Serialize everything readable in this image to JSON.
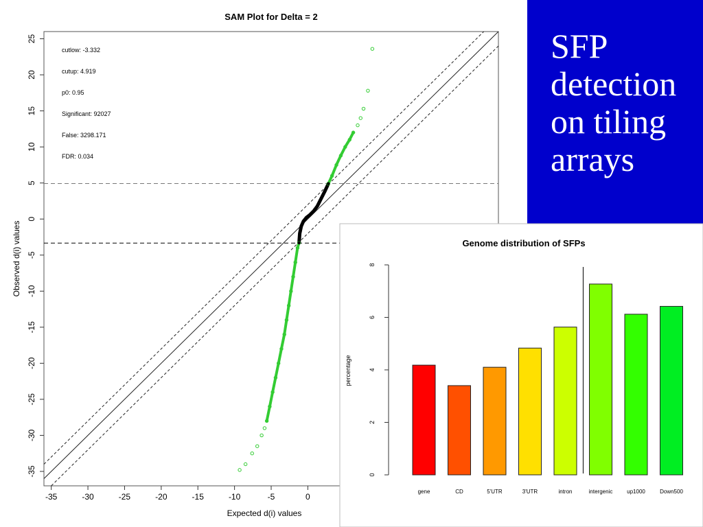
{
  "slide": {
    "title": "SFP detection on tiling arrays"
  },
  "colors": {
    "slide_blue": "#0000cc",
    "sig_green": "#33cc33",
    "null_black": "#000000"
  },
  "chart_data": [
    {
      "type": "scatter",
      "title": "SAM Plot for Delta = 2",
      "xlabel": "Expected d(i) values",
      "ylabel": "Observed d(i) values",
      "xlim": [
        -36,
        26
      ],
      "ylim": [
        -37,
        26
      ],
      "xticks": [
        -35,
        -30,
        -25,
        -20,
        -15,
        -10,
        -5,
        0
      ],
      "yticks": [
        -35,
        -30,
        -25,
        -20,
        -15,
        -10,
        -5,
        0,
        5,
        10,
        15,
        20,
        25
      ],
      "delta": 2,
      "stats": [
        {
          "label": "cutlow:",
          "value": "-3.332"
        },
        {
          "label": "cutup:",
          "value": "4.919"
        },
        {
          "label": "p0:",
          "value": "0.95"
        },
        {
          "label": "Significant:",
          "value": "92027"
        },
        {
          "label": "False:",
          "value": "3298.171"
        },
        {
          "label": "FDR:",
          "value": "0.034"
        }
      ],
      "cut_lines": {
        "upper": 4.919,
        "lower": -3.332
      },
      "significant_low": [
        [
          -9.3,
          -34.8
        ],
        [
          -8.5,
          -34.0
        ],
        [
          -7.6,
          -32.5
        ],
        [
          -6.9,
          -31.5
        ],
        [
          -6.3,
          -30.0
        ],
        [
          -5.9,
          -29.0
        ],
        [
          -5.6,
          -28.0
        ],
        [
          -5.2,
          -26.0
        ],
        [
          -4.8,
          -24.0
        ],
        [
          -4.4,
          -22.0
        ],
        [
          -4.0,
          -20.0
        ],
        [
          -3.6,
          -18.0
        ],
        [
          -3.2,
          -16.0
        ],
        [
          -2.9,
          -14.0
        ],
        [
          -2.6,
          -12.0
        ],
        [
          -2.3,
          -10.0
        ],
        [
          -2.0,
          -8.0
        ],
        [
          -1.7,
          -6.0
        ],
        [
          -1.4,
          -4.0
        ],
        [
          -1.2,
          -3.3
        ]
      ],
      "null_points": [
        [
          -1.2,
          -3.3
        ],
        [
          -1.1,
          -2.0
        ],
        [
          -0.9,
          -1.0
        ],
        [
          -0.6,
          -0.3
        ],
        [
          -0.2,
          0.2
        ],
        [
          0.3,
          0.6
        ],
        [
          0.8,
          1.1
        ],
        [
          1.3,
          1.8
        ],
        [
          1.8,
          2.8
        ],
        [
          2.3,
          3.8
        ],
        [
          2.8,
          4.9
        ]
      ],
      "significant_high": [
        [
          2.8,
          4.9
        ],
        [
          3.3,
          6.0
        ],
        [
          3.9,
          7.5
        ],
        [
          4.5,
          8.8
        ],
        [
          5.1,
          10.0
        ],
        [
          5.7,
          11.0
        ],
        [
          6.2,
          12.0
        ],
        [
          6.8,
          13.0
        ],
        [
          7.2,
          14.0
        ],
        [
          7.6,
          15.3
        ],
        [
          8.2,
          17.8
        ],
        [
          8.8,
          23.6
        ]
      ]
    },
    {
      "type": "bar",
      "title": "Genome distribution of SFPs",
      "ylabel": "percentage",
      "ylim": [
        0,
        8
      ],
      "yticks": [
        0,
        2,
        4,
        6,
        8
      ],
      "categories": [
        "gene",
        "CD",
        "5'UTR",
        "3'UTR",
        "intron",
        "intergenic",
        "up1000",
        "Down500"
      ],
      "values": [
        4.18,
        3.4,
        4.1,
        4.83,
        5.63,
        7.27,
        6.12,
        6.42
      ],
      "bar_colors": [
        "#ff0000",
        "#ff5000",
        "#ff9900",
        "#ffe000",
        "#ccff00",
        "#80ff00",
        "#33ff00",
        "#00ee22"
      ]
    }
  ]
}
